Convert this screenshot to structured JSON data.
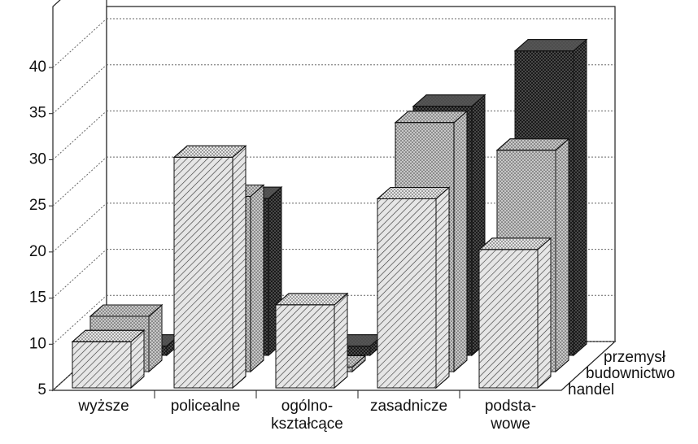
{
  "chart_data": {
    "type": "bar3d",
    "categories": [
      [
        "wyższe"
      ],
      [
        "policealne"
      ],
      [
        "ogólno-",
        "kształcące"
      ],
      [
        "zasadnicze"
      ],
      [
        "podsta-",
        "wowe"
      ]
    ],
    "series": [
      {
        "name": "handel",
        "color": "#e6e6e6",
        "values": [
          10,
          30,
          14,
          25.5,
          20
        ]
      },
      {
        "name": "budownictwo",
        "color": "#c8c8c8",
        "values": [
          11,
          24,
          5.5,
          32,
          29
        ]
      },
      {
        "name": "przemysł",
        "color": "#555555",
        "values": [
          6,
          22,
          6,
          32,
          38
        ]
      }
    ],
    "ylim": [
      5,
      40
    ],
    "yticks": [
      5,
      10,
      15,
      20,
      25,
      30,
      35,
      40
    ],
    "grid": true
  }
}
